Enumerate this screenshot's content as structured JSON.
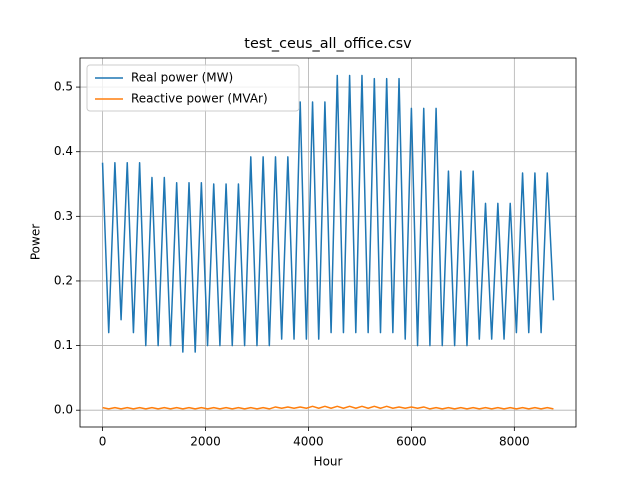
{
  "chart_data": {
    "type": "line",
    "title": "test_ceus_all_office.csv",
    "x_label": "Hour",
    "y_label": "Power",
    "x": [
      0,
      120,
      240,
      360,
      480,
      600,
      720,
      840,
      960,
      1080,
      1200,
      1320,
      1440,
      1560,
      1680,
      1800,
      1920,
      2040,
      2160,
      2280,
      2400,
      2520,
      2640,
      2760,
      2880,
      3000,
      3120,
      3240,
      3360,
      3480,
      3600,
      3720,
      3840,
      3960,
      4080,
      4200,
      4320,
      4440,
      4560,
      4680,
      4800,
      4920,
      5040,
      5160,
      5280,
      5400,
      5520,
      5640,
      5760,
      5880,
      6000,
      6120,
      6240,
      6360,
      6480,
      6600,
      6720,
      6840,
      6960,
      7080,
      7200,
      7320,
      7440,
      7560,
      7680,
      7800,
      7920,
      8040,
      8160,
      8280,
      8400,
      8520,
      8640,
      8760
    ],
    "series": [
      {
        "name": "Real power (MW)",
        "color": "#1f77b4",
        "values": [
          0.383,
          0.12,
          0.383,
          0.14,
          0.383,
          0.12,
          0.383,
          0.1,
          0.36,
          0.1,
          0.36,
          0.1,
          0.352,
          0.09,
          0.352,
          0.09,
          0.352,
          0.1,
          0.35,
          0.1,
          0.35,
          0.1,
          0.35,
          0.1,
          0.392,
          0.1,
          0.392,
          0.1,
          0.392,
          0.11,
          0.392,
          0.11,
          0.477,
          0.11,
          0.477,
          0.11,
          0.477,
          0.12,
          0.518,
          0.12,
          0.518,
          0.12,
          0.518,
          0.12,
          0.513,
          0.12,
          0.513,
          0.12,
          0.513,
          0.11,
          0.467,
          0.1,
          0.467,
          0.1,
          0.467,
          0.1,
          0.37,
          0.1,
          0.37,
          0.1,
          0.37,
          0.11,
          0.32,
          0.11,
          0.32,
          0.11,
          0.32,
          0.12,
          0.367,
          0.12,
          0.367,
          0.12,
          0.367,
          0.17
        ]
      },
      {
        "name": "Reactive power (MVAr)",
        "color": "#ff7f0e",
        "values": [
          0.004,
          0.002,
          0.004,
          0.002,
          0.004,
          0.002,
          0.004,
          0.002,
          0.004,
          0.002,
          0.004,
          0.002,
          0.004,
          0.002,
          0.004,
          0.002,
          0.004,
          0.002,
          0.004,
          0.002,
          0.004,
          0.002,
          0.004,
          0.002,
          0.004,
          0.002,
          0.004,
          0.002,
          0.005,
          0.003,
          0.005,
          0.003,
          0.005,
          0.003,
          0.006,
          0.003,
          0.006,
          0.003,
          0.006,
          0.003,
          0.006,
          0.003,
          0.006,
          0.003,
          0.006,
          0.003,
          0.006,
          0.003,
          0.005,
          0.003,
          0.005,
          0.003,
          0.005,
          0.002,
          0.004,
          0.002,
          0.004,
          0.002,
          0.004,
          0.002,
          0.004,
          0.002,
          0.004,
          0.002,
          0.004,
          0.002,
          0.004,
          0.002,
          0.004,
          0.002,
          0.004,
          0.002,
          0.004,
          0.002
        ]
      }
    ],
    "xlim": [
      -438,
      9198
    ],
    "ylim": [
      -0.026,
      0.545
    ],
    "xticks": [
      0,
      2000,
      4000,
      6000,
      8000
    ],
    "yticks": [
      {
        "value": 0,
        "label": "0.0"
      },
      0.1,
      0.2,
      0.3,
      0.4,
      0.5
    ],
    "grid": true,
    "legend": "upper-left"
  }
}
